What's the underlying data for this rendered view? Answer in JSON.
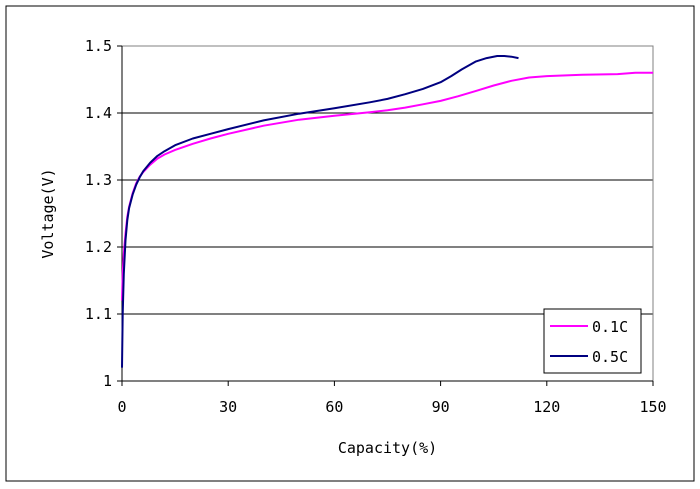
{
  "chart_data": {
    "type": "line",
    "title": "",
    "xlabel": "Capacity(%)",
    "ylabel": "Voltage(V)",
    "xlim": [
      0,
      150
    ],
    "ylim": [
      1.0,
      1.5
    ],
    "x_ticks": [
      "0",
      "30",
      "60",
      "90",
      "120",
      "150"
    ],
    "y_ticks": [
      "1",
      "1.1",
      "1.2",
      "1.3",
      "1.4",
      "1.5"
    ],
    "grid": "horizontal major gridlines",
    "legend_position": "bottom-right",
    "series": [
      {
        "name": "0.1C",
        "color": "#FF00FF",
        "x": [
          0,
          0.2,
          0.5,
          1,
          1.5,
          2,
          3,
          4,
          5,
          6,
          8,
          10,
          12,
          15,
          20,
          25,
          30,
          40,
          50,
          60,
          70,
          75,
          80,
          85,
          90,
          95,
          100,
          105,
          110,
          115,
          120,
          130,
          140,
          145,
          150
        ],
        "y": [
          1.12,
          1.16,
          1.19,
          1.22,
          1.245,
          1.26,
          1.28,
          1.295,
          1.305,
          1.312,
          1.323,
          1.332,
          1.338,
          1.345,
          1.354,
          1.362,
          1.369,
          1.381,
          1.39,
          1.396,
          1.401,
          1.404,
          1.408,
          1.413,
          1.418,
          1.425,
          1.433,
          1.441,
          1.448,
          1.453,
          1.455,
          1.457,
          1.458,
          1.46,
          1.46
        ]
      },
      {
        "name": "0.5C",
        "color": "#000080",
        "x": [
          0,
          0.2,
          0.5,
          1,
          1.5,
          2,
          3,
          4,
          5,
          6,
          8,
          10,
          12,
          15,
          20,
          25,
          30,
          40,
          50,
          60,
          70,
          75,
          80,
          85,
          90,
          93,
          96,
          100,
          103,
          106,
          108,
          110,
          112
        ],
        "y": [
          1.02,
          1.1,
          1.16,
          1.21,
          1.24,
          1.258,
          1.278,
          1.293,
          1.304,
          1.313,
          1.326,
          1.336,
          1.343,
          1.352,
          1.362,
          1.369,
          1.376,
          1.389,
          1.399,
          1.407,
          1.416,
          1.421,
          1.428,
          1.436,
          1.446,
          1.455,
          1.465,
          1.477,
          1.482,
          1.485,
          1.485,
          1.484,
          1.482
        ]
      }
    ]
  }
}
